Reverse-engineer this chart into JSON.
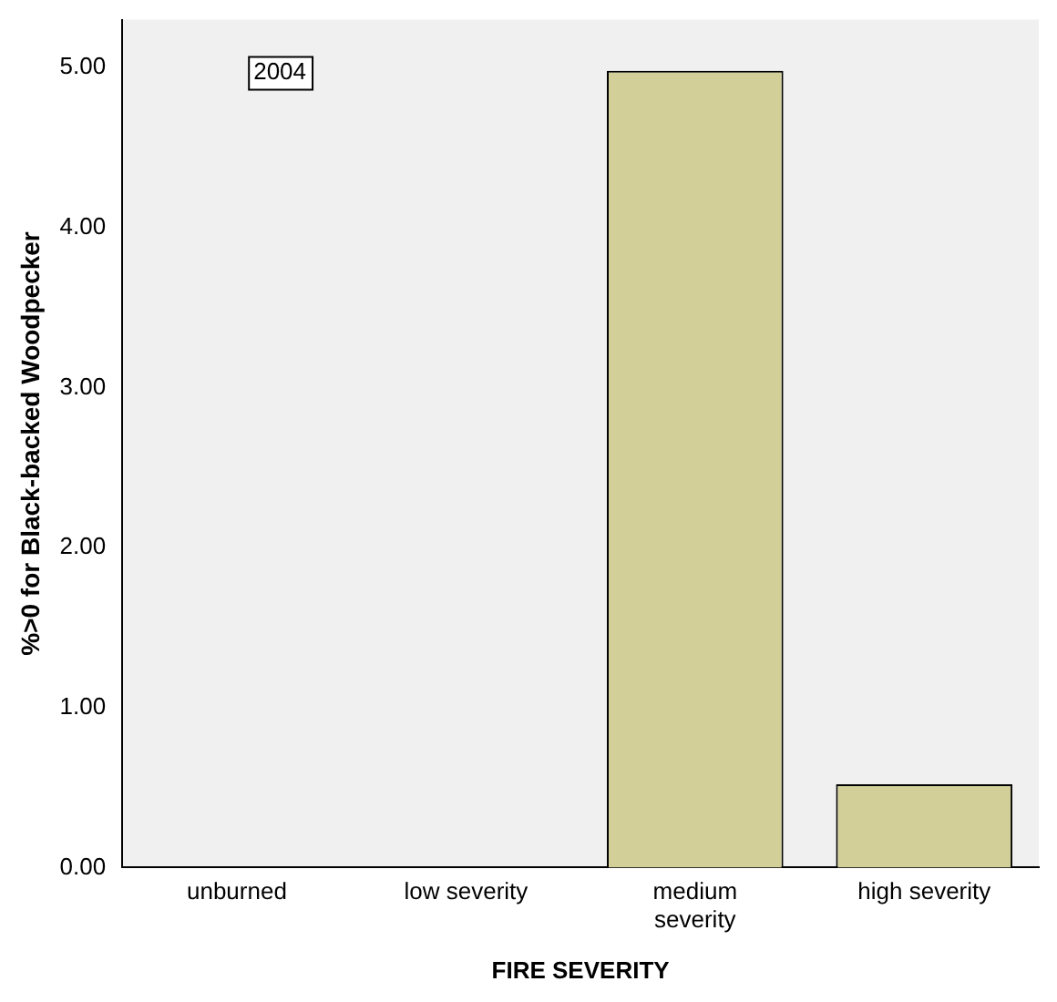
{
  "chart_data": {
    "type": "bar",
    "xlabel": "FIRE SEVERITY",
    "ylabel": "%>0 for Black-backed Woodpecker",
    "categories": [
      "unburned",
      "low severity",
      "medium severity",
      "high severity"
    ],
    "values": [
      0,
      0,
      4.98,
      0.52
    ],
    "color": "#d3cf98",
    "ylim": [
      0,
      5.3
    ],
    "yticks": [
      {
        "value": 0,
        "label": "0.00"
      },
      {
        "value": 1,
        "label": "1.00"
      },
      {
        "value": 2,
        "label": "2.00"
      },
      {
        "value": 3,
        "label": "3.00"
      },
      {
        "value": 4,
        "label": "4.00"
      },
      {
        "value": 5,
        "label": "5.00"
      }
    ],
    "grid": false,
    "legend": false,
    "annotations": [
      "2004"
    ]
  }
}
